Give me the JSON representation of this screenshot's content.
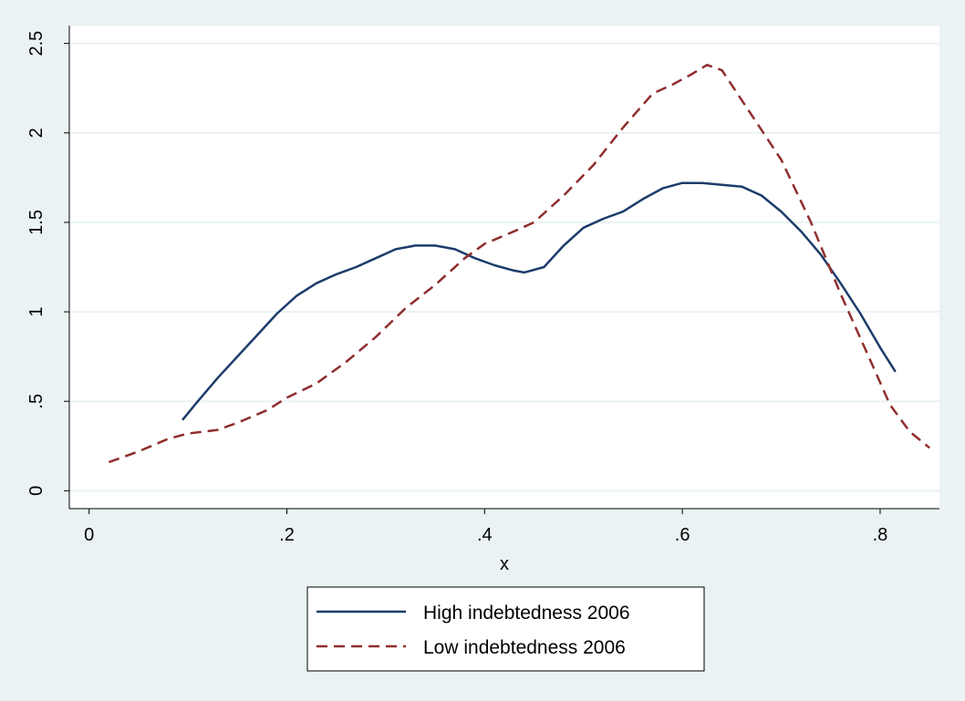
{
  "chart_data": {
    "type": "line",
    "title": "",
    "xlabel": "x",
    "ylabel": "",
    "xlim": [
      -0.02,
      0.86
    ],
    "ylim": [
      -0.1,
      2.6
    ],
    "xticks": [
      {
        "value": 0,
        "label": "0"
      },
      {
        "value": 0.2,
        "label": ".2"
      },
      {
        "value": 0.4,
        "label": ".4"
      },
      {
        "value": 0.6,
        "label": ".6"
      },
      {
        "value": 0.8,
        "label": ".8"
      }
    ],
    "yticks": [
      {
        "value": 0,
        "label": "0"
      },
      {
        "value": 0.5,
        "label": ".5"
      },
      {
        "value": 1,
        "label": "1"
      },
      {
        "value": 1.5,
        "label": "1.5"
      },
      {
        "value": 2,
        "label": "2"
      },
      {
        "value": 2.5,
        "label": "2.5"
      }
    ],
    "grid": "horizontal",
    "legend_position": "bottom",
    "colors": {
      "background": "#eaf2f3",
      "plot_area": "#ffffff",
      "grid": "#eaf2f3",
      "high": "#1c3c6a",
      "low": "#8f2d2d"
    },
    "series": [
      {
        "name": "High indebtedness 2006",
        "style": "solid",
        "x": [
          0.095,
          0.11,
          0.13,
          0.15,
          0.17,
          0.19,
          0.21,
          0.23,
          0.25,
          0.27,
          0.29,
          0.31,
          0.33,
          0.35,
          0.37,
          0.39,
          0.41,
          0.43,
          0.44,
          0.46,
          0.48,
          0.5,
          0.52,
          0.54,
          0.56,
          0.58,
          0.6,
          0.62,
          0.64,
          0.66,
          0.68,
          0.7,
          0.72,
          0.74,
          0.76,
          0.78,
          0.8,
          0.815
        ],
        "values": [
          0.4,
          0.5,
          0.63,
          0.75,
          0.87,
          0.99,
          1.09,
          1.16,
          1.21,
          1.25,
          1.3,
          1.35,
          1.37,
          1.37,
          1.35,
          1.3,
          1.26,
          1.23,
          1.22,
          1.25,
          1.37,
          1.47,
          1.52,
          1.56,
          1.63,
          1.69,
          1.72,
          1.72,
          1.71,
          1.7,
          1.65,
          1.56,
          1.45,
          1.32,
          1.16,
          0.99,
          0.8,
          0.67
        ]
      },
      {
        "name": "Low indebtedness 2006",
        "style": "dashed",
        "x": [
          0.02,
          0.05,
          0.08,
          0.1,
          0.13,
          0.15,
          0.18,
          0.2,
          0.23,
          0.26,
          0.29,
          0.32,
          0.35,
          0.38,
          0.4,
          0.43,
          0.45,
          0.48,
          0.51,
          0.54,
          0.57,
          0.59,
          0.61,
          0.625,
          0.64,
          0.67,
          0.7,
          0.73,
          0.76,
          0.79,
          0.81,
          0.83,
          0.85
        ],
        "values": [
          0.16,
          0.22,
          0.29,
          0.32,
          0.34,
          0.38,
          0.45,
          0.52,
          0.6,
          0.72,
          0.86,
          1.02,
          1.15,
          1.3,
          1.38,
          1.45,
          1.5,
          1.65,
          1.82,
          2.03,
          2.22,
          2.27,
          2.33,
          2.38,
          2.35,
          2.1,
          1.85,
          1.5,
          1.1,
          0.73,
          0.48,
          0.33,
          0.24
        ]
      }
    ]
  }
}
